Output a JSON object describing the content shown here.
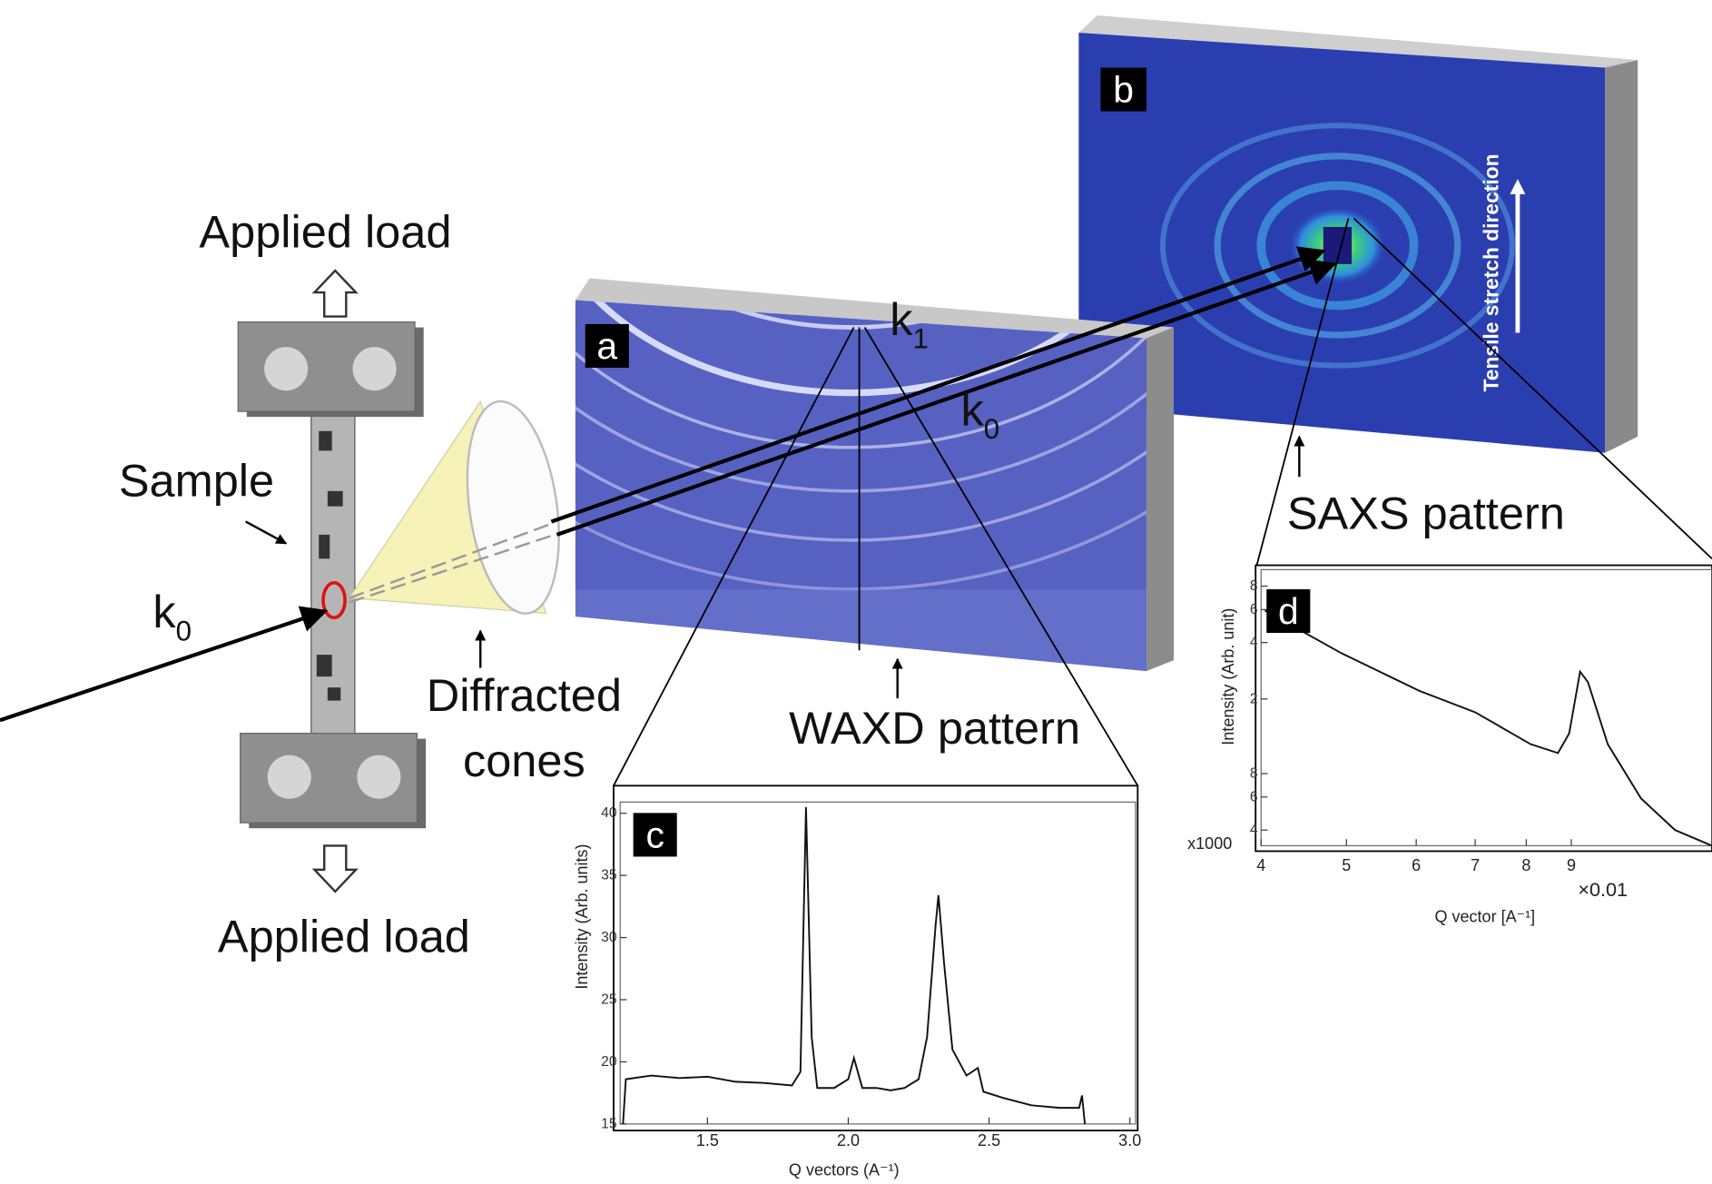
{
  "labels": {
    "applied_load_top": "Applied load",
    "applied_load_bottom": "Applied load",
    "sample": "Sample",
    "diffracted_cones": [
      "Diffracted",
      "cones"
    ],
    "waxd": "WAXD pattern",
    "saxs": "SAXS pattern",
    "tensile": "Tensile stretch direction"
  },
  "wavevectors": {
    "k0_incident": {
      "symbol": "k",
      "subscript": "0"
    },
    "k0_beam": {
      "symbol": "k",
      "subscript": "0"
    },
    "k1": {
      "symbol": "k",
      "subscript": "1"
    }
  },
  "panels": [
    "a",
    "b",
    "c",
    "d"
  ],
  "plots": [
    {
      "panel": "c",
      "ylabel": "Intensity (Arb. units)",
      "xlabel": "Q vectors (A⁻¹)",
      "xscale": "linear",
      "yscale": "linear",
      "xlim": [
        1.19,
        3.02
      ],
      "ylim": [
        15,
        40.9
      ],
      "xticks": [
        1.5,
        {
          "value": 2,
          "label": "2.0"
        },
        2.5,
        {
          "value": 3,
          "label": "3.0"
        }
      ],
      "yticks": [
        15,
        20,
        25,
        30,
        35,
        40
      ],
      "x": [
        1.2,
        1.21,
        1.3,
        1.4,
        1.5,
        1.6,
        1.7,
        1.8,
        1.83,
        1.85,
        1.87,
        1.89,
        1.95,
        2.0,
        2.02,
        2.05,
        2.1,
        2.15,
        2.2,
        2.25,
        2.28,
        2.31,
        2.32,
        2.34,
        2.37,
        2.42,
        2.46,
        2.48,
        2.55,
        2.65,
        2.75,
        2.82,
        2.83,
        2.84
      ],
      "y": [
        15,
        18.6,
        18.9,
        18.7,
        18.8,
        18.4,
        18.3,
        18.1,
        19.2,
        40.5,
        22,
        17.9,
        17.9,
        18.6,
        20.3,
        17.9,
        17.9,
        17.7,
        17.9,
        18.6,
        22,
        31,
        33.4,
        28,
        21,
        18.9,
        19.5,
        17.6,
        17.1,
        16.5,
        16.3,
        16.3,
        17.3,
        15
      ]
    },
    {
      "panel": "d",
      "ylabel": "Intensity (Arb. unit)",
      "xlabel": "Q vector [A⁻¹]",
      "x_multiplier": "×0.01",
      "y_multiplier": "x1000",
      "xscale": "log",
      "yscale": "log",
      "xlim": [
        4,
        13
      ],
      "ylim": [
        3.3,
        98
      ],
      "xticks": [
        4,
        5,
        6,
        7,
        8,
        9
      ],
      "yticks": [
        4,
        6,
        8,
        {
          "value": 20,
          "label": "2"
        },
        {
          "value": 40,
          "label": "4"
        },
        {
          "value": 60,
          "label": "6"
        },
        {
          "value": 80,
          "label": "8"
        }
      ],
      "x": [
        4.04,
        4.94,
        6.05,
        7.0,
        8.09,
        8.69,
        8.95,
        9.21,
        9.4,
        9.9,
        10.8,
        11.8,
        13.0
      ],
      "y": [
        59.3,
        35,
        22.1,
        17,
        11.5,
        10.3,
        13.1,
        28,
        24.6,
        11.5,
        5.9,
        4,
        3.3
      ]
    }
  ]
}
